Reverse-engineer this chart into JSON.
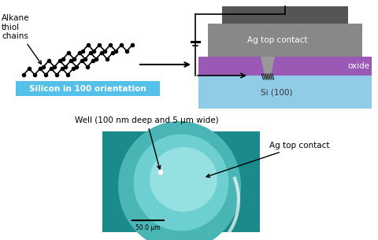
{
  "bg_color": "#ffffff",
  "alkane_label": "Alkane\nthiol\nchains",
  "silicon_label": "Silicon in 100 orientation",
  "silicon_label_bg": "#55c0e8",
  "ag_top_label": "Ag top contact",
  "oxide_label": "oxide",
  "si100_label": "Si (100)",
  "well_label": "Well (100 nm deep and 5 μm wide)",
  "ag_top_label2": "Ag top contact",
  "scale_label": "50.0 μm",
  "layer_ag_color": "#888888",
  "layer_ag_dark_color": "#555555",
  "layer_oxide_color": "#9b59b6",
  "layer_si_color": "#90cce8",
  "teal_bg": "#1a8a8a",
  "tip_color": "#999999",
  "wire_color": "#000000"
}
